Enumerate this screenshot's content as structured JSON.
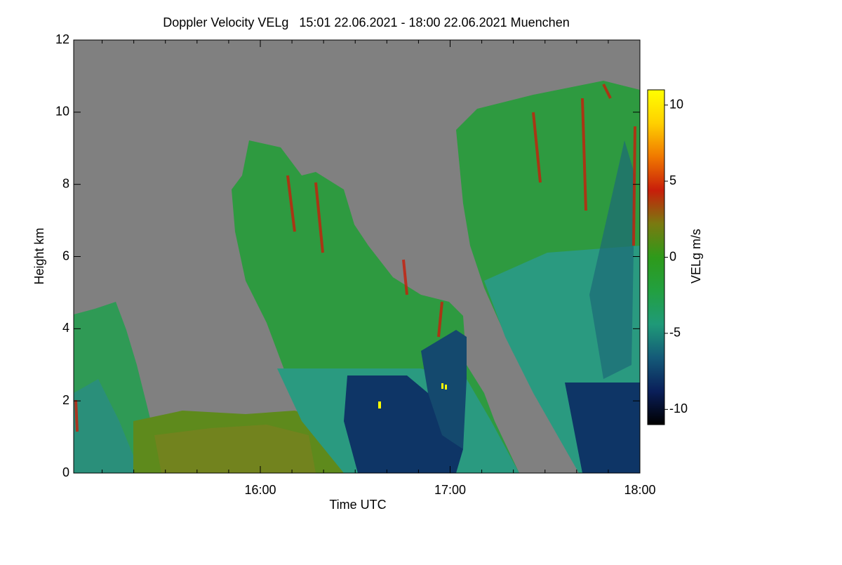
{
  "chart_data": {
    "type": "heatmap",
    "title": "Doppler Velocity VELg   15:01 22.06.2021 - 18:00 22.06.2021 Muenchen",
    "xlabel": "Time UTC",
    "ylabel": "Height km",
    "xlim": [
      15.0167,
      18.0
    ],
    "xticks": [
      {
        "value": 16,
        "label": "16:00"
      },
      {
        "value": 17,
        "label": "17:00"
      },
      {
        "value": 18,
        "label": "18:00"
      }
    ],
    "ylim": [
      0,
      12
    ],
    "yticks": [
      0,
      2,
      4,
      6,
      8,
      10,
      12
    ],
    "background": "#808080",
    "colorbar": {
      "label": "VELg m/s",
      "clim": [
        -11,
        11
      ],
      "ticks": [
        -10,
        -5,
        0,
        5,
        10
      ],
      "colors": [
        "#000000",
        "#0a1f5a",
        "#145a78",
        "#1f9a78",
        "#22a040",
        "#2e9a1a",
        "#7a7a10",
        "#c81e0a",
        "#f07800",
        "#ffd000",
        "#ffff00"
      ]
    }
  }
}
